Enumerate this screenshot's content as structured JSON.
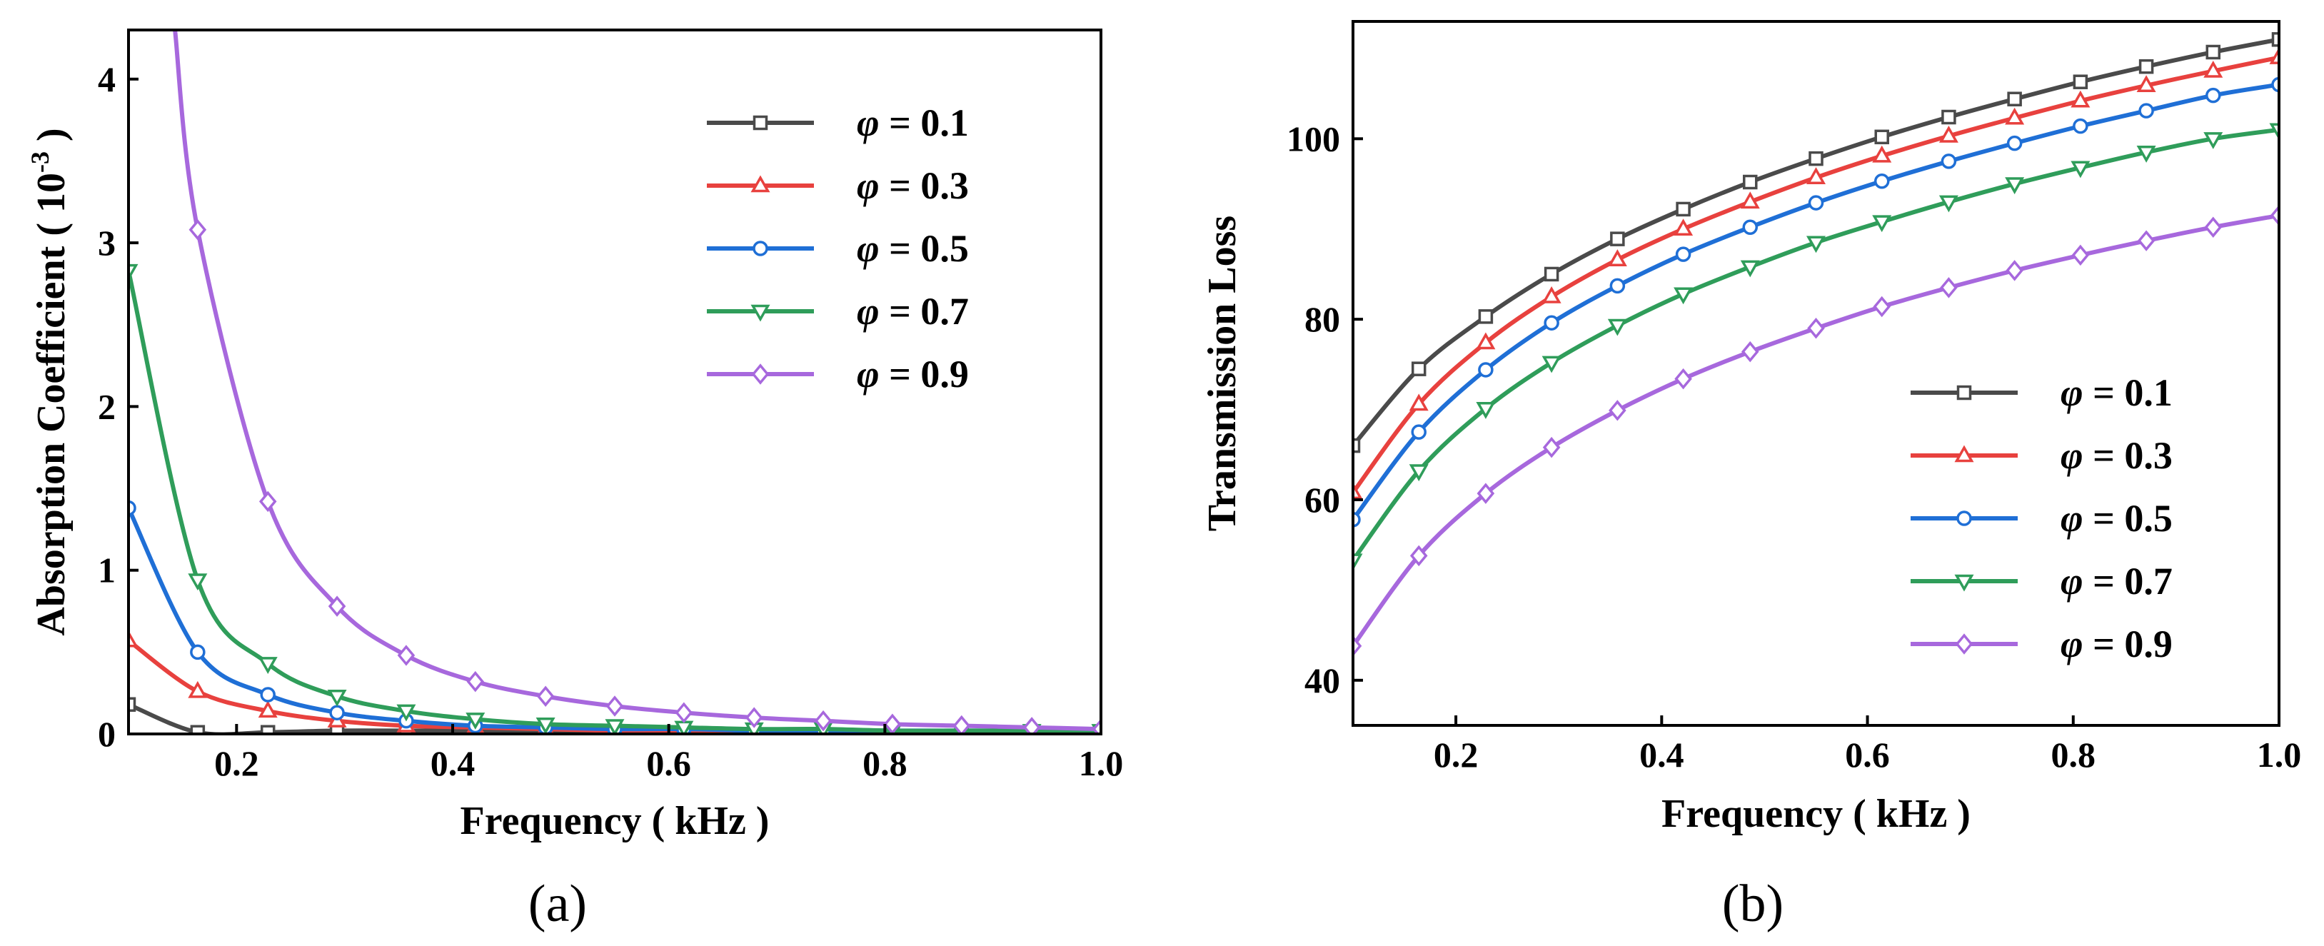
{
  "chart_data": [
    {
      "type": "line",
      "panel_label": "(a)",
      "title": "",
      "xlabel": "Frequency ( kHz )",
      "ylabel": "Absorption Coefficient ( 10",
      "ylabel_sup": "-3",
      "ylabel_close": " )",
      "xlim": [
        0.1,
        1.0
      ],
      "ylim": [
        0,
        4.3
      ],
      "xticks": [
        0.2,
        0.4,
        0.6,
        0.8,
        1.0
      ],
      "xtick_labels": [
        "0.2",
        "0.4",
        "0.6",
        "0.8",
        "1.0"
      ],
      "yticks": [
        0,
        1,
        2,
        3,
        4
      ],
      "ytick_labels": [
        "0",
        "1",
        "2",
        "3",
        "4"
      ],
      "legend_position": "top-right",
      "x": [
        0.1,
        0.164,
        0.229,
        0.293,
        0.357,
        0.421,
        0.486,
        0.55,
        0.614,
        0.679,
        0.743,
        0.807,
        0.871,
        0.936,
        1.0
      ],
      "series": [
        {
          "name": "φ = 0.1",
          "color": "#4a4a4a",
          "marker": "square",
          "values": [
            0.18,
            0.01,
            0.01,
            0.02,
            0.02,
            0.02,
            0.02,
            0.02,
            0.02,
            0.02,
            0.02,
            0.02,
            0.01,
            0.01,
            0.01
          ]
        },
        {
          "name": "φ = 0.3",
          "color": "#e8413e",
          "marker": "triangle-up",
          "values": [
            0.57,
            0.26,
            0.14,
            0.08,
            0.05,
            0.04,
            0.03,
            0.02,
            0.02,
            0.02,
            0.02,
            0.01,
            0.01,
            0.01,
            0.01
          ]
        },
        {
          "name": "φ = 0.5",
          "color": "#1f6fd6",
          "marker": "circle",
          "values": [
            1.38,
            0.5,
            0.24,
            0.13,
            0.08,
            0.05,
            0.04,
            0.03,
            0.03,
            0.02,
            0.02,
            0.02,
            0.02,
            0.02,
            0.02
          ]
        },
        {
          "name": "φ = 0.7",
          "color": "#2f9d5a",
          "marker": "triangle-down",
          "values": [
            2.83,
            0.94,
            0.43,
            0.23,
            0.14,
            0.09,
            0.06,
            0.05,
            0.04,
            0.03,
            0.03,
            0.02,
            0.02,
            0.02,
            0.02
          ]
        },
        {
          "name": "φ = 0.9",
          "color": "#a768dd",
          "marker": "diamond",
          "values": [
            null,
            3.08,
            1.42,
            0.78,
            0.48,
            0.32,
            0.23,
            0.17,
            0.13,
            0.1,
            0.08,
            0.06,
            0.05,
            0.04,
            0.03
          ]
        }
      ],
      "curve_start": {
        "x": 0.143,
        "y": 4.3
      }
    },
    {
      "type": "line",
      "panel_label": "(b)",
      "title": "",
      "xlabel": "Frequency ( kHz )",
      "ylabel": "Transmission Loss",
      "xlim": [
        0.1,
        1.0
      ],
      "ylim": [
        35,
        113
      ],
      "xticks": [
        0.2,
        0.4,
        0.6,
        0.8,
        1.0
      ],
      "xtick_labels": [
        "0.2",
        "0.4",
        "0.6",
        "0.8",
        "1.0"
      ],
      "yticks": [
        40,
        60,
        80,
        100
      ],
      "ytick_labels": [
        "40",
        "60",
        "80",
        "100"
      ],
      "legend_position": "bottom-right",
      "x": [
        0.1,
        0.164,
        0.229,
        0.293,
        0.357,
        0.421,
        0.486,
        0.55,
        0.614,
        0.679,
        0.743,
        0.807,
        0.871,
        0.936,
        1.0
      ],
      "series": [
        {
          "name": "φ = 0.1",
          "color": "#4a4a4a",
          "marker": "square",
          "values": [
            66,
            74.5,
            80.3,
            85,
            88.9,
            92.2,
            95.2,
            97.8,
            100.2,
            102.4,
            104.4,
            106.3,
            108,
            109.6,
            111
          ]
        },
        {
          "name": "φ = 0.3",
          "color": "#e8413e",
          "marker": "triangle-up",
          "values": [
            60.8,
            70.6,
            77.4,
            82.5,
            86.6,
            90,
            93,
            95.7,
            98.1,
            100.3,
            102.3,
            104.2,
            105.9,
            107.5,
            109
          ]
        },
        {
          "name": "φ = 0.5",
          "color": "#1f6fd6",
          "marker": "circle",
          "values": [
            57.8,
            67.5,
            74.4,
            79.6,
            83.7,
            87.2,
            90.2,
            92.9,
            95.3,
            97.5,
            99.5,
            101.4,
            103.1,
            104.8,
            106
          ]
        },
        {
          "name": "φ = 0.7",
          "color": "#2f9d5a",
          "marker": "triangle-down",
          "values": [
            53.3,
            63.2,
            70.1,
            75.2,
            79.3,
            82.8,
            85.8,
            88.5,
            90.8,
            93,
            95,
            96.8,
            98.5,
            100,
            101
          ]
        },
        {
          "name": "φ = 0.9",
          "color": "#a768dd",
          "marker": "diamond",
          "values": [
            43.8,
            53.8,
            60.7,
            65.8,
            69.9,
            73.4,
            76.4,
            79,
            81.4,
            83.5,
            85.4,
            87.1,
            88.7,
            90.2,
            91.5
          ]
        }
      ]
    }
  ]
}
